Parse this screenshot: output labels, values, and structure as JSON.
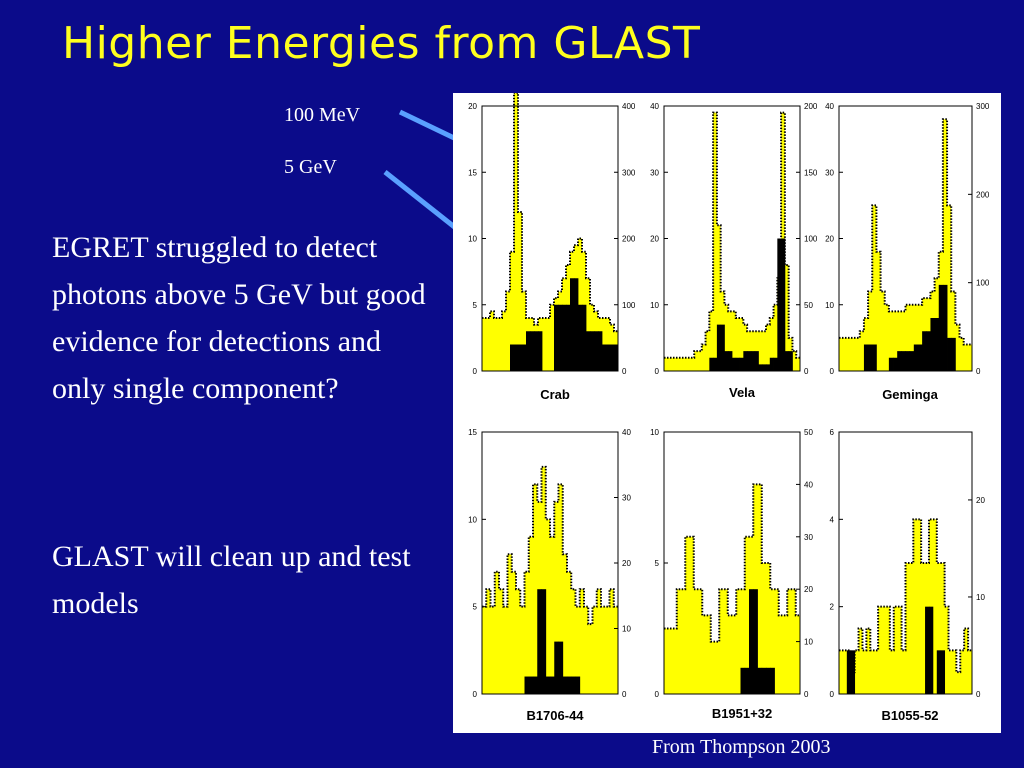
{
  "title": "Higher Energies from GLAST",
  "bullets": [
    "EGRET struggled to detect photons above 5 GeV but good evidence for detections and only single component?",
    "GLAST will clean up and test models"
  ],
  "callouts": {
    "low": "100 MeV",
    "high": "5 GeV"
  },
  "credit": "From Thompson 2003",
  "colors": {
    "background": "#0b0b8a",
    "title": "#ffff1e",
    "arrow": "#5aa0ff",
    "fill_low": "#ffff00",
    "fill_high": "#000000"
  },
  "chart_data": [
    {
      "type": "bar",
      "title": "Crab",
      "left_ticks": [
        "0",
        "5",
        "10",
        "15",
        "20"
      ],
      "ylim_left": [
        0,
        20
      ],
      "right_ticks": [
        "0",
        "100",
        "200",
        "300",
        "400"
      ],
      "ylim_right": [
        0,
        400
      ],
      "series": [
        {
          "name": "100 MeV",
          "values": [
            4,
            4,
            4.5,
            4,
            4,
            4.5,
            6,
            9,
            21,
            12,
            6,
            4,
            4,
            3.5,
            4,
            4,
            4,
            5,
            5.5,
            6,
            7,
            8,
            9,
            9.5,
            10,
            9,
            7,
            5,
            4.5,
            4,
            4,
            4,
            3.5,
            3
          ]
        },
        {
          "name": "5 GeV",
          "values": [
            0,
            0,
            0,
            0,
            0,
            0,
            0,
            2,
            2,
            2,
            2,
            3,
            3,
            3,
            3,
            0,
            0,
            0,
            5,
            5,
            5,
            5,
            7,
            7,
            5,
            5,
            3,
            3,
            3,
            3,
            2,
            2,
            2,
            2
          ]
        }
      ]
    },
    {
      "type": "bar",
      "title": "Vela",
      "left_ticks": [
        "0",
        "10",
        "20",
        "30",
        "40"
      ],
      "ylim_left": [
        0,
        40
      ],
      "right_ticks": [
        "0",
        "50",
        "100",
        "150",
        "200"
      ],
      "ylim_right": [
        0,
        200
      ],
      "series": [
        {
          "name": "100 MeV",
          "values": [
            2,
            2,
            2,
            2,
            2,
            2,
            2,
            2,
            3,
            3,
            4,
            6,
            9,
            39,
            22,
            12,
            10,
            9,
            9,
            8,
            8,
            7,
            6,
            6,
            6,
            6,
            6,
            7,
            8,
            10,
            14,
            39,
            16,
            5,
            3,
            2
          ]
        },
        {
          "name": "5 GeV",
          "values": [
            0,
            0,
            0,
            0,
            0,
            0,
            0,
            0,
            0,
            0,
            0,
            0,
            2,
            2,
            7,
            7,
            3,
            3,
            2,
            2,
            2,
            3,
            3,
            3,
            3,
            1,
            1,
            1,
            2,
            2,
            20,
            20,
            3,
            3,
            0,
            0
          ]
        }
      ]
    },
    {
      "type": "bar",
      "title": "Geminga",
      "left_ticks": [
        "0",
        "10",
        "20",
        "30",
        "40"
      ],
      "ylim_left": [
        0,
        40
      ],
      "right_ticks": [
        "0",
        "100",
        "200",
        "300"
      ],
      "ylim_right": [
        0,
        300
      ],
      "series": [
        {
          "name": "100 MeV",
          "values": [
            5,
            5,
            5,
            5,
            5,
            6,
            8,
            12,
            25,
            18,
            12,
            10,
            9,
            9,
            9,
            9,
            10,
            10,
            10,
            10,
            11,
            11,
            12,
            14,
            18,
            38,
            25,
            12,
            7,
            5,
            4,
            4
          ]
        },
        {
          "name": "5 GeV",
          "values": [
            0,
            0,
            0,
            0,
            0,
            0,
            4,
            4,
            4,
            0,
            0,
            0,
            2,
            2,
            3,
            3,
            3,
            3,
            4,
            4,
            6,
            6,
            8,
            8,
            13,
            13,
            5,
            5,
            0,
            0,
            0,
            0
          ]
        }
      ]
    },
    {
      "type": "bar",
      "title": "B1706-44",
      "left_ticks": [
        "0",
        "5",
        "10",
        "15"
      ],
      "ylim_left": [
        0,
        15
      ],
      "right_ticks": [
        "0",
        "10",
        "20",
        "30",
        "40"
      ],
      "ylim_right": [
        0,
        40
      ],
      "series": [
        {
          "name": "100 MeV",
          "values": [
            5,
            6,
            5,
            7,
            6,
            5,
            8,
            7,
            6,
            5,
            7,
            9,
            12,
            11,
            13,
            10,
            9,
            11,
            12,
            8,
            7,
            6,
            5,
            6,
            5,
            4,
            5,
            6,
            5,
            5,
            6,
            5
          ]
        },
        {
          "name": "5 GeV",
          "values": [
            0,
            0,
            0,
            0,
            0,
            0,
            0,
            0,
            0,
            0,
            1,
            1,
            1,
            6,
            6,
            1,
            1,
            3,
            3,
            1,
            1,
            1,
            1,
            0,
            0,
            0,
            0,
            0,
            0,
            0,
            0,
            0
          ]
        }
      ]
    },
    {
      "type": "bar",
      "title": "B1951+32",
      "left_ticks": [
        "0",
        "5",
        "10"
      ],
      "ylim_left": [
        0,
        10
      ],
      "right_ticks": [
        "0",
        "10",
        "20",
        "30",
        "40",
        "50"
      ],
      "ylim_right": [
        0,
        50
      ],
      "series": [
        {
          "name": "100 MeV",
          "values": [
            2.5,
            2.5,
            2.5,
            4,
            4,
            6,
            6,
            4,
            4,
            3,
            3,
            2,
            2,
            4,
            4,
            3,
            3,
            4,
            4,
            6,
            6,
            8,
            8,
            5,
            5,
            4,
            4,
            3,
            3,
            4,
            4,
            3
          ]
        },
        {
          "name": "5 GeV",
          "values": [
            0,
            0,
            0,
            0,
            0,
            0,
            0,
            0,
            0,
            0,
            0,
            0,
            0,
            0,
            0,
            0,
            0,
            0,
            1,
            1,
            4,
            4,
            1,
            1,
            1,
            1,
            0,
            0,
            0,
            0,
            0,
            0
          ]
        }
      ]
    },
    {
      "type": "bar",
      "title": "B1055-52",
      "left_ticks": [
        "0",
        "2",
        "4",
        "6"
      ],
      "ylim_left": [
        0,
        6
      ],
      "right_ticks": [
        "0",
        "10",
        "20"
      ],
      "ylim_right": [
        0,
        27
      ],
      "series": [
        {
          "name": "100 MeV",
          "values": [
            1,
            1,
            1,
            0.5,
            1,
            1.5,
            1,
            1.5,
            1,
            1,
            2,
            2,
            2,
            1,
            2,
            2,
            1,
            3,
            3,
            4,
            4,
            3,
            3,
            4,
            4,
            3,
            3,
            2,
            1,
            1,
            0.5,
            1,
            1.5,
            1
          ]
        },
        {
          "name": "5 GeV",
          "values": [
            0,
            0,
            1,
            1,
            0,
            0,
            0,
            0,
            0,
            0,
            0,
            0,
            0,
            0,
            0,
            0,
            0,
            0,
            0,
            0,
            0,
            0,
            2,
            2,
            0,
            1,
            1,
            0,
            0,
            0,
            0,
            0,
            0,
            0
          ]
        }
      ]
    }
  ]
}
